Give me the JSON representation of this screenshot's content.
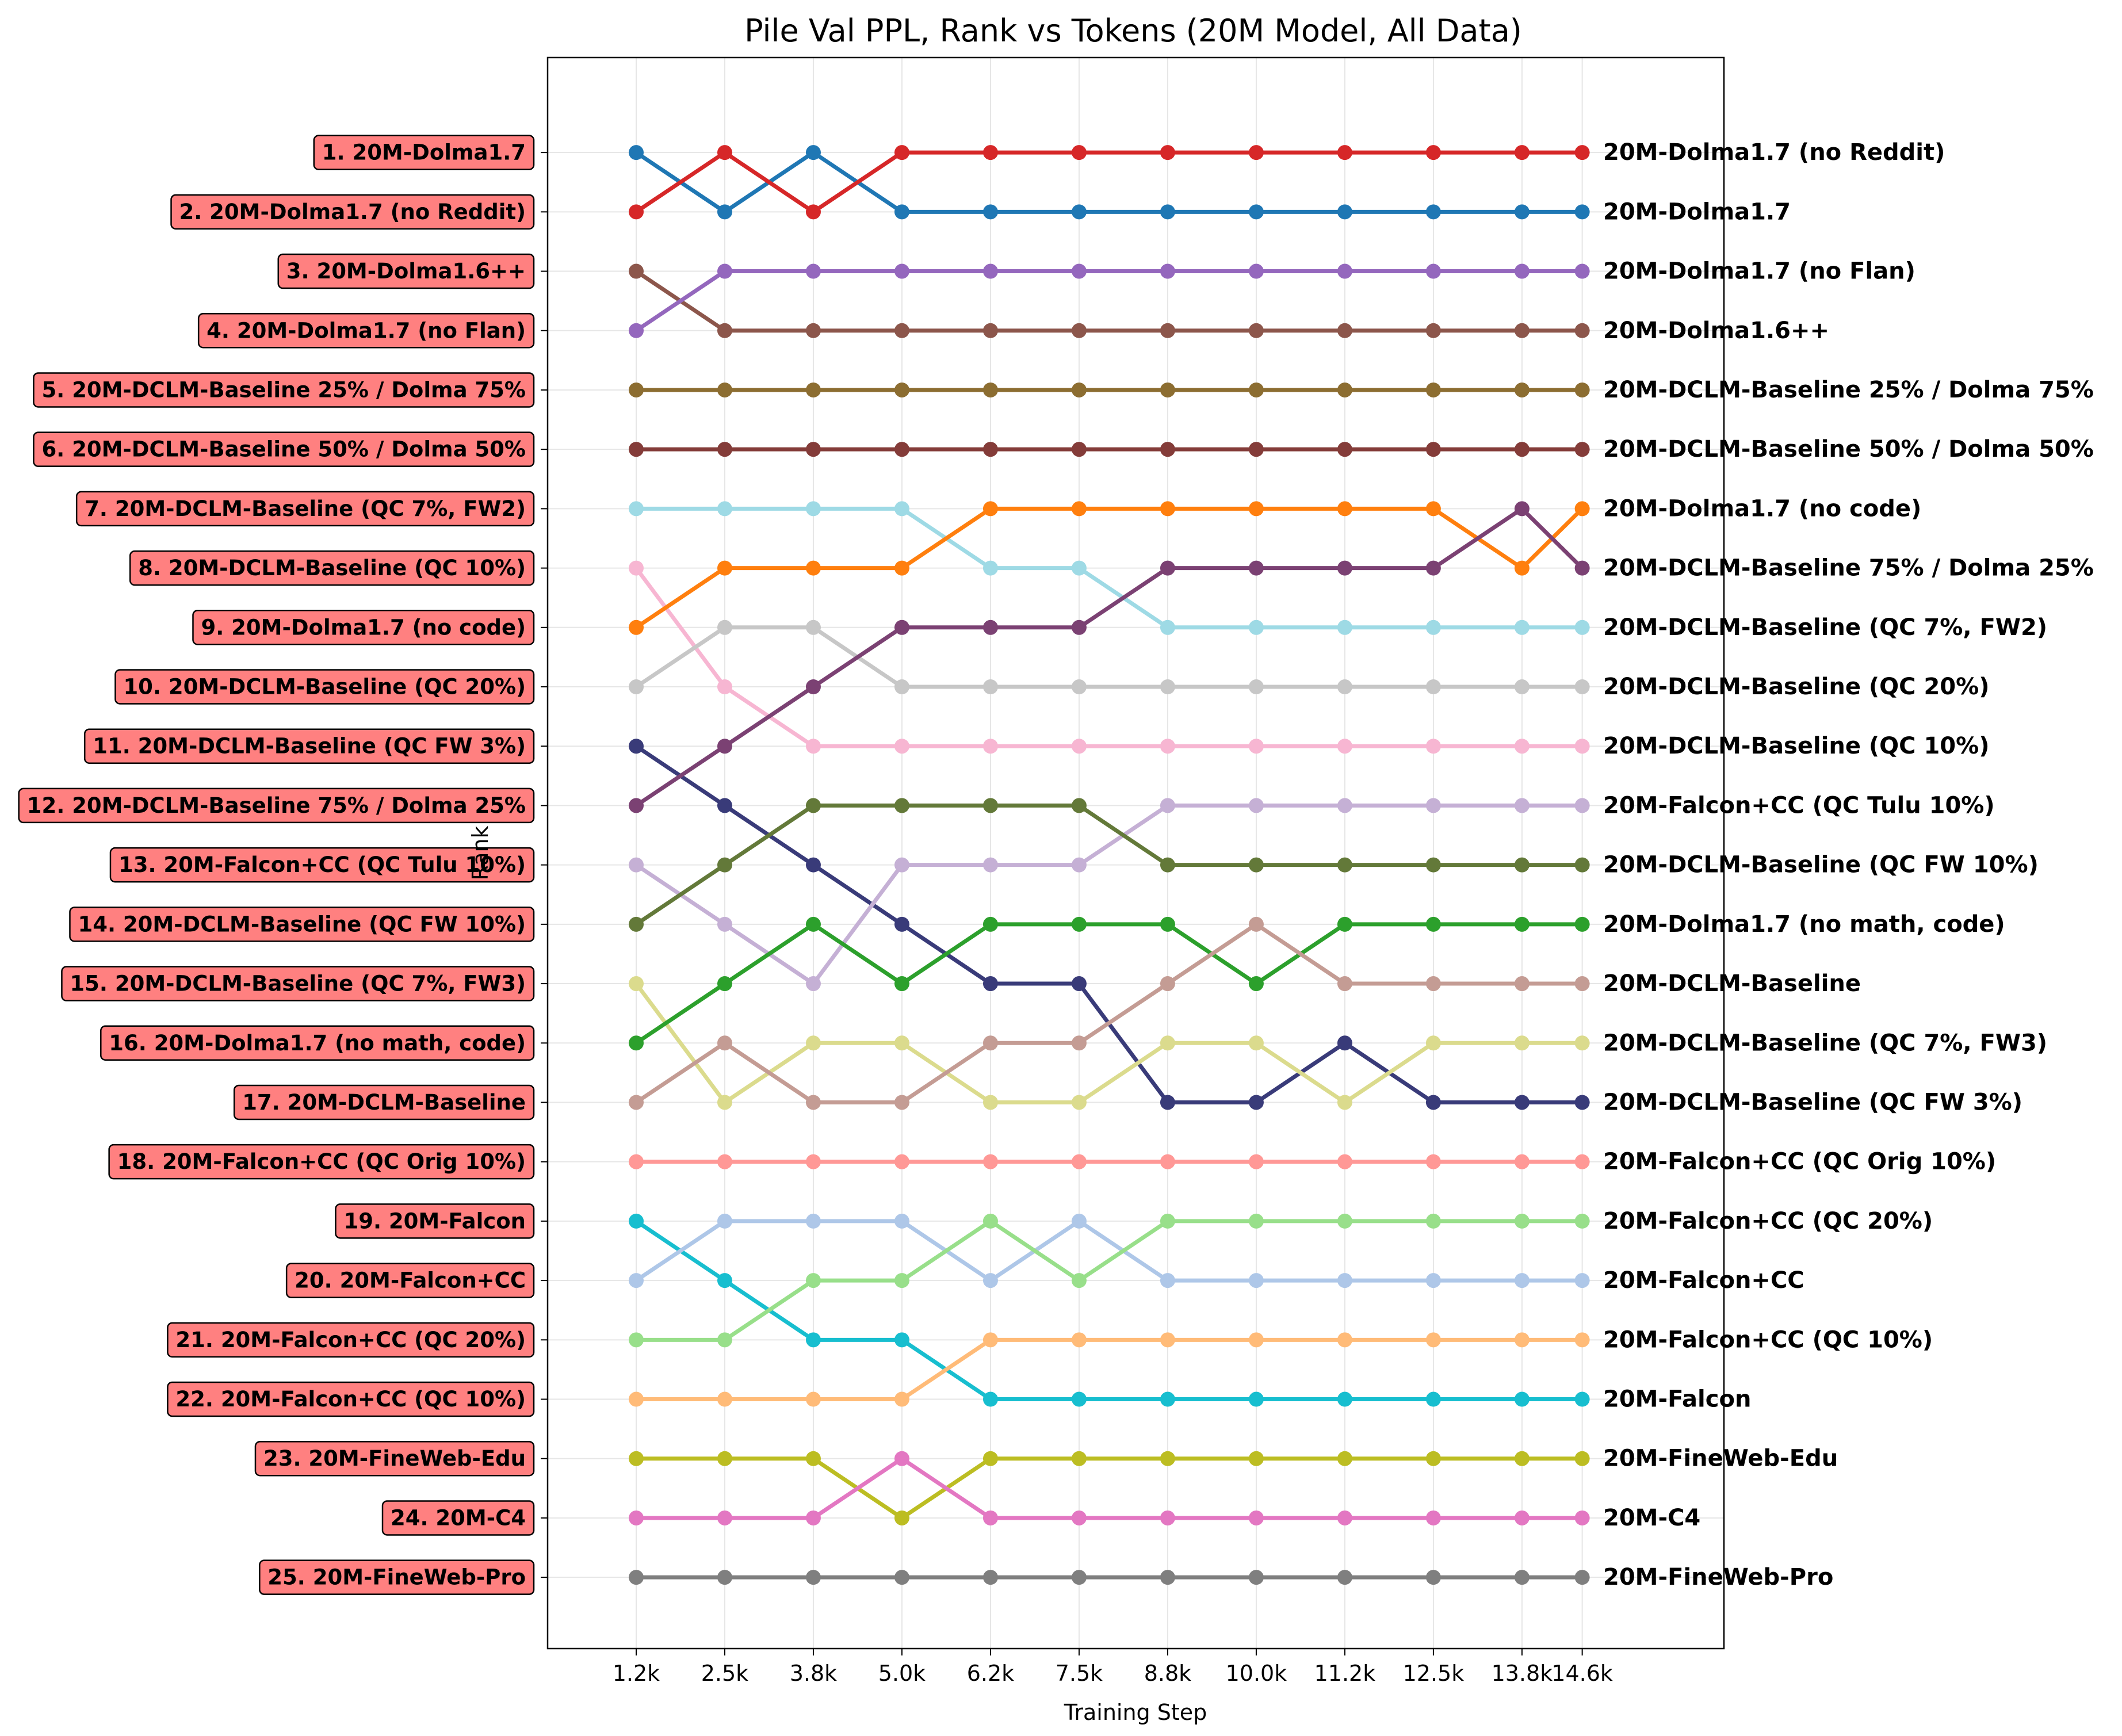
{
  "chart_data": {
    "type": "line",
    "title": "Pile Val PPL, Rank vs Tokens (20M Model, All Data)",
    "xlabel": "Training Step",
    "ylabel": "Rank",
    "x": [
      "1.2k",
      "2.5k",
      "3.8k",
      "5.0k",
      "6.2k",
      "7.5k",
      "8.8k",
      "10.0k",
      "11.2k",
      "12.5k",
      "13.8k",
      "14.6k"
    ],
    "x_numeric": [
      1250,
      2500,
      3750,
      5000,
      6250,
      7500,
      8750,
      10000,
      11250,
      12500,
      13750,
      14600
    ],
    "ylim": [
      26.2,
      -0.6
    ],
    "grid": true,
    "start_labels": [
      "1. 20M-Dolma1.7",
      "2. 20M-Dolma1.7 (no Reddit)",
      "3. 20M-Dolma1.6++",
      "4. 20M-Dolma1.7 (no Flan)",
      "5. 20M-DCLM-Baseline 25% / Dolma 75%",
      "6. 20M-DCLM-Baseline 50% / Dolma 50%",
      "7. 20M-DCLM-Baseline (QC 7%, FW2)",
      "8. 20M-DCLM-Baseline (QC 10%)",
      "9. 20M-Dolma1.7 (no code)",
      "10. 20M-DCLM-Baseline (QC 20%)",
      "11. 20M-DCLM-Baseline (QC FW 3%)",
      "12. 20M-DCLM-Baseline 75% / Dolma 25%",
      "13. 20M-Falcon+CC (QC Tulu 10%)",
      "14. 20M-DCLM-Baseline (QC FW 10%)",
      "15. 20M-DCLM-Baseline (QC 7%, FW3)",
      "16. 20M-Dolma1.7 (no math, code)",
      "17. 20M-DCLM-Baseline",
      "18. 20M-Falcon+CC (QC Orig 10%)",
      "19. 20M-Falcon",
      "20. 20M-Falcon+CC",
      "21. 20M-Falcon+CC (QC 20%)",
      "22. 20M-Falcon+CC (QC 10%)",
      "23. 20M-FineWeb-Edu",
      "24. 20M-C4",
      "25. 20M-FineWeb-Pro"
    ],
    "end_labels": [
      "20M-Dolma1.7 (no Reddit)",
      "20M-Dolma1.7",
      "20M-Dolma1.7 (no Flan)",
      "20M-Dolma1.6++",
      "20M-DCLM-Baseline 25% / Dolma 75%",
      "20M-DCLM-Baseline 50% / Dolma 50%",
      "20M-Dolma1.7 (no code)",
      "20M-DCLM-Baseline 75% / Dolma 25%",
      "20M-DCLM-Baseline (QC 7%, FW2)",
      "20M-DCLM-Baseline (QC 20%)",
      "20M-DCLM-Baseline (QC 10%)",
      "20M-Falcon+CC (QC Tulu 10%)",
      "20M-DCLM-Baseline (QC FW 10%)",
      "20M-Dolma1.7 (no math, code)",
      "20M-DCLM-Baseline",
      "20M-DCLM-Baseline (QC 7%, FW3)",
      "20M-DCLM-Baseline (QC FW 3%)",
      "20M-Falcon+CC (QC Orig 10%)",
      "20M-Falcon+CC (QC 20%)",
      "20M-Falcon+CC",
      "20M-Falcon+CC (QC 10%)",
      "20M-Falcon",
      "20M-FineWeb-Edu",
      "20M-C4",
      "20M-FineWeb-Pro"
    ],
    "series": [
      {
        "name": "20M-Dolma1.7",
        "color": "#1f77b4",
        "values": [
          1,
          2,
          1,
          2,
          2,
          2,
          2,
          2,
          2,
          2,
          2,
          2
        ]
      },
      {
        "name": "20M-Dolma1.7 (no Reddit)",
        "color": "#d62728",
        "values": [
          2,
          1,
          2,
          1,
          1,
          1,
          1,
          1,
          1,
          1,
          1,
          1
        ]
      },
      {
        "name": "20M-Dolma1.6++",
        "color": "#8c564b",
        "values": [
          3,
          4,
          4,
          4,
          4,
          4,
          4,
          4,
          4,
          4,
          4,
          4
        ]
      },
      {
        "name": "20M-Dolma1.7 (no Flan)",
        "color": "#9467bd",
        "values": [
          4,
          3,
          3,
          3,
          3,
          3,
          3,
          3,
          3,
          3,
          3,
          3
        ]
      },
      {
        "name": "20M-DCLM-Baseline 25% / Dolma 75%",
        "color": "#8c6d31",
        "values": [
          5,
          5,
          5,
          5,
          5,
          5,
          5,
          5,
          5,
          5,
          5,
          5
        ]
      },
      {
        "name": "20M-DCLM-Baseline 50% / Dolma 50%",
        "color": "#843c39",
        "values": [
          6,
          6,
          6,
          6,
          6,
          6,
          6,
          6,
          6,
          6,
          6,
          6
        ]
      },
      {
        "name": "20M-DCLM-Baseline (QC 7%, FW2)",
        "color": "#9edae5",
        "values": [
          7,
          7,
          7,
          7,
          8,
          8,
          9,
          9,
          9,
          9,
          9,
          9
        ]
      },
      {
        "name": "20M-DCLM-Baseline (QC 10%)",
        "color": "#f7b6d2",
        "values": [
          8,
          10,
          11,
          11,
          11,
          11,
          11,
          11,
          11,
          11,
          11,
          11
        ]
      },
      {
        "name": "20M-Dolma1.7 (no code)",
        "color": "#ff7f0e",
        "values": [
          9,
          8,
          8,
          8,
          7,
          7,
          7,
          7,
          7,
          7,
          8,
          7
        ]
      },
      {
        "name": "20M-DCLM-Baseline (QC 20%)",
        "color": "#c7c7c7",
        "values": [
          10,
          9,
          9,
          10,
          10,
          10,
          10,
          10,
          10,
          10,
          10,
          10
        ]
      },
      {
        "name": "20M-DCLM-Baseline (QC FW 3%)",
        "color": "#393b79",
        "values": [
          11,
          12,
          13,
          14,
          15,
          15,
          17,
          17,
          16,
          17,
          17,
          17
        ]
      },
      {
        "name": "20M-DCLM-Baseline 75% / Dolma 25%",
        "color": "#7b4173",
        "values": [
          12,
          11,
          10,
          9,
          9,
          9,
          8,
          8,
          8,
          8,
          7,
          8
        ]
      },
      {
        "name": "20M-Falcon+CC (QC Tulu 10%)",
        "color": "#c5b0d5",
        "values": [
          13,
          14,
          15,
          13,
          13,
          13,
          12,
          12,
          12,
          12,
          12,
          12
        ]
      },
      {
        "name": "20M-DCLM-Baseline (QC FW 10%)",
        "color": "#637939",
        "values": [
          14,
          13,
          12,
          12,
          12,
          12,
          13,
          13,
          13,
          13,
          13,
          13
        ]
      },
      {
        "name": "20M-DCLM-Baseline (QC 7%, FW3)",
        "color": "#dbdb8d",
        "values": [
          15,
          17,
          16,
          16,
          17,
          17,
          16,
          16,
          17,
          16,
          16,
          16
        ]
      },
      {
        "name": "20M-Dolma1.7 (no math, code)",
        "color": "#2ca02c",
        "values": [
          16,
          15,
          14,
          15,
          14,
          14,
          14,
          15,
          14,
          14,
          14,
          14
        ]
      },
      {
        "name": "20M-DCLM-Baseline",
        "color": "#c49c94",
        "values": [
          17,
          16,
          17,
          17,
          16,
          16,
          15,
          14,
          15,
          15,
          15,
          15
        ]
      },
      {
        "name": "20M-Falcon+CC (QC Orig 10%)",
        "color": "#ff9896",
        "values": [
          18,
          18,
          18,
          18,
          18,
          18,
          18,
          18,
          18,
          18,
          18,
          18
        ]
      },
      {
        "name": "20M-Falcon",
        "color": "#17becf",
        "values": [
          19,
          20,
          21,
          21,
          22,
          22,
          22,
          22,
          22,
          22,
          22,
          22
        ]
      },
      {
        "name": "20M-Falcon+CC",
        "color": "#aec7e8",
        "values": [
          20,
          19,
          19,
          19,
          20,
          19,
          20,
          20,
          20,
          20,
          20,
          20
        ]
      },
      {
        "name": "20M-Falcon+CC (QC 20%)",
        "color": "#98df8a",
        "values": [
          21,
          21,
          20,
          20,
          19,
          20,
          19,
          19,
          19,
          19,
          19,
          19
        ]
      },
      {
        "name": "20M-Falcon+CC (QC 10%)",
        "color": "#ffbb78",
        "values": [
          22,
          22,
          22,
          22,
          21,
          21,
          21,
          21,
          21,
          21,
          21,
          21
        ]
      },
      {
        "name": "20M-FineWeb-Edu",
        "color": "#bcbd22",
        "values": [
          23,
          23,
          23,
          24,
          23,
          23,
          23,
          23,
          23,
          23,
          23,
          23
        ]
      },
      {
        "name": "20M-C4",
        "color": "#e377c2",
        "values": [
          24,
          24,
          24,
          23,
          24,
          24,
          24,
          24,
          24,
          24,
          24,
          24
        ]
      },
      {
        "name": "20M-FineWeb-Pro",
        "color": "#7f7f7f",
        "values": [
          25,
          25,
          25,
          25,
          25,
          25,
          25,
          25,
          25,
          25,
          25,
          25
        ]
      }
    ],
    "start_label_box_color": "#ff8080"
  }
}
